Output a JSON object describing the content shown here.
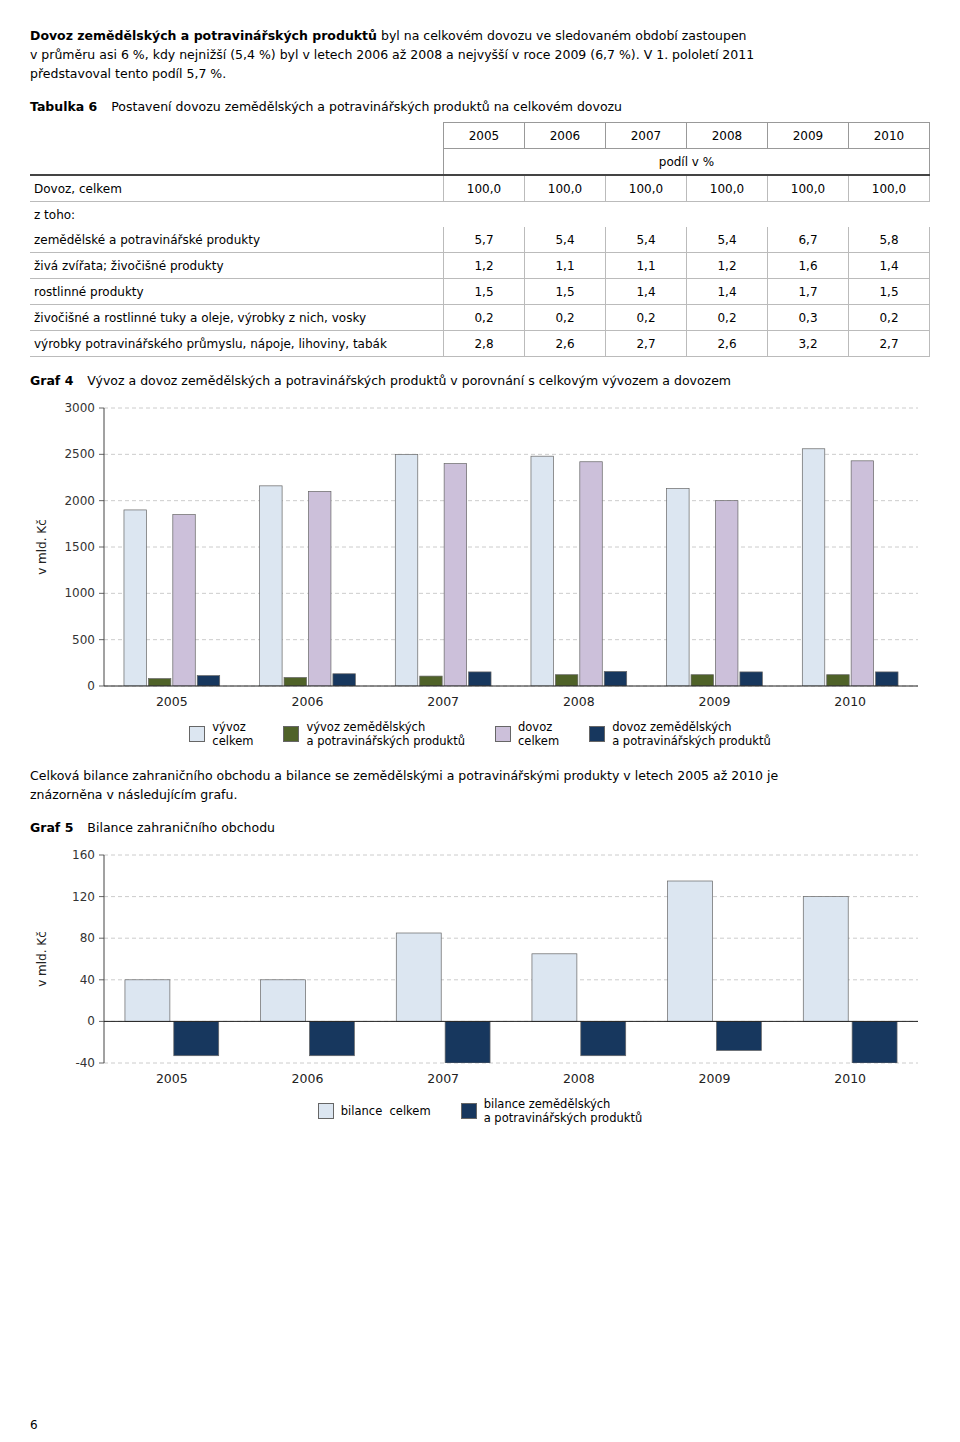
{
  "intro": [
    [
      {
        "text": "Dovoz zemědělských a potravinářských produktů",
        "bold": true
      },
      {
        "text": " byl na celkovém dovozu ve sledovaném období zastoupen"
      }
    ],
    [
      {
        "text": "v průměru asi 6 %, kdy nejnižší (5,4 %) byl v letech 2006 až 2008 a nejvyšší v roce 2009 (6,7 %). V 1. pololetí 2011"
      }
    ],
    [
      {
        "text": "představoval tento podíl 5,7 %."
      }
    ]
  ],
  "chart_data": [
    {
      "type": "table",
      "label": "Tabulka 6",
      "title": "Postavení dovozu zemědělských a potravinářských produktů na celkovém dovozu",
      "categories": [
        "2005",
        "2006",
        "2007",
        "2008",
        "2009",
        "2010"
      ],
      "subheader": "podíl v %",
      "rows": [
        {
          "label": "Dovoz, celkem",
          "values": [
            100.0,
            100.0,
            100.0,
            100.0,
            100.0,
            100.0
          ],
          "value_labels": [
            "100,0",
            "100,0",
            "100,0",
            "100,0",
            "100,0",
            "100,0"
          ]
        },
        {
          "label": "z toho:",
          "values": [
            null,
            null,
            null,
            null,
            null,
            null
          ],
          "value_labels": [
            null,
            null,
            null,
            null,
            null,
            null
          ]
        },
        {
          "label": "zemědělské a potravinářské produkty",
          "values": [
            5.7,
            5.4,
            5.4,
            5.4,
            6.7,
            5.8
          ],
          "value_labels": [
            "5,7",
            "5,4",
            "5,4",
            "5,4",
            "6,7",
            "5,8"
          ]
        },
        {
          "label": "živá zvířata; živočišné produkty",
          "values": [
            1.2,
            1.1,
            1.1,
            1.2,
            1.6,
            1.4
          ],
          "value_labels": [
            "1,2",
            "1,1",
            "1,1",
            "1,2",
            "1,6",
            "1,4"
          ]
        },
        {
          "label": "rostlinné produkty",
          "values": [
            1.5,
            1.5,
            1.4,
            1.4,
            1.7,
            1.5
          ],
          "value_labels": [
            "1,5",
            "1,5",
            "1,4",
            "1,4",
            "1,7",
            "1,5"
          ]
        },
        {
          "label": "živočišné a rostlinné tuky a oleje, výrobky z nich, vosky",
          "values": [
            0.2,
            0.2,
            0.2,
            0.2,
            0.3,
            0.2
          ],
          "value_labels": [
            "0,2",
            "0,2",
            "0,2",
            "0,2",
            "0,3",
            "0,2"
          ]
        },
        {
          "label": "výrobky potravinářského průmyslu, nápoje, lihoviny, tabák",
          "values": [
            2.8,
            2.6,
            2.7,
            2.6,
            3.2,
            2.7
          ],
          "value_labels": [
            "2,8",
            "2,6",
            "2,7",
            "2,6",
            "3,2",
            "2,7"
          ]
        }
      ]
    },
    {
      "type": "bar",
      "label": "Graf 4",
      "title": "Vývoz a dovoz zemědělských a potravinářských produktů v porovnání s celkovým vývozem a dovozem",
      "categories": [
        "2005",
        "2006",
        "2007",
        "2008",
        "2009",
        "2010"
      ],
      "series": [
        {
          "name": "vývoz\ncelkem",
          "color": "#dce6f1",
          "values": [
            1900,
            2160,
            2500,
            2480,
            2130,
            2560
          ]
        },
        {
          "name": "vývoz zemědělských\na potravinářských produktů",
          "color": "#4f6228",
          "values": [
            80,
            92,
            107,
            122,
            122,
            122
          ]
        },
        {
          "name": "dovoz\ncelkem",
          "color": "#ccc0da",
          "values": [
            1850,
            2100,
            2400,
            2420,
            2000,
            2430
          ]
        },
        {
          "name": "dovoz zemědělských\na potravinářských produktů",
          "color": "#17375e",
          "values": [
            112,
            132,
            152,
            157,
            152,
            152
          ]
        }
      ],
      "ylabel": "v mld. Kč",
      "ylim": [
        0,
        3000
      ],
      "yticks": [
        0,
        500,
        1000,
        1500,
        2000,
        2500,
        3000
      ],
      "grid": true,
      "legend": "bottom"
    },
    {
      "type": "bar",
      "label": "Graf 5",
      "title": "Bilance zahraničního obchodu",
      "categories": [
        "2005",
        "2006",
        "2007",
        "2008",
        "2009",
        "2010"
      ],
      "series": [
        {
          "name": "bilance  celkem",
          "color": "#dce6f1",
          "values": [
            40,
            40,
            85,
            65,
            135,
            120
          ]
        },
        {
          "name": "bilance zemědělských\na potravinářských produktů",
          "color": "#17375e",
          "values": [
            -33,
            -33,
            -40,
            -33,
            -28,
            -40
          ]
        }
      ],
      "ylabel": "v mld. Kč",
      "ylim": [
        -40,
        160
      ],
      "yticks": [
        -40,
        0,
        40,
        80,
        120,
        160
      ],
      "grid": true,
      "legend": "bottom"
    }
  ],
  "bridge_text": [
    "Celková bilance zahraničního obchodu a bilance se zemědělskými a potravinářskými produkty v letech 2005 až 2010 je",
    "znázorněna v následujícím grafu."
  ],
  "footer": "6"
}
